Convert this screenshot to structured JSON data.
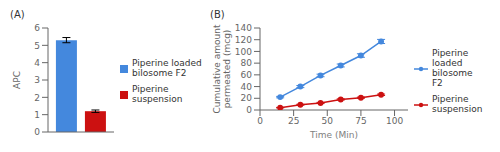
{
  "chart_data": [
    {
      "type": "bar",
      "title": "(A)",
      "ylabel": "APC",
      "categories": [
        null
      ],
      "series": [
        {
          "name": "Piperine loaded\nbilosome F2",
          "color": "#4488DD",
          "values": [
            5.3
          ],
          "errors": [
            0.15
          ]
        },
        {
          "name": "Piperine\nsuspension",
          "color": "#CC1111",
          "values": [
            1.2
          ],
          "errors": [
            0.07
          ]
        }
      ],
      "ylim": [
        0,
        6
      ],
      "yticks": [
        0,
        1,
        2,
        3,
        4,
        5,
        6
      ],
      "tick_labels": "y",
      "grid": false,
      "legend": "right"
    },
    {
      "type": "line",
      "title": "(B)",
      "xlabel": "Time (Min)",
      "ylabel": "Cumulative amount\npermeated (mcg)",
      "x": [
        15,
        30,
        45,
        60,
        75,
        90
      ],
      "series": [
        {
          "name": "Piperine\nloaded\nbilosome F2",
          "color": "#4488DD",
          "values": [
            22,
            40,
            59,
            76,
            93,
            117
          ],
          "errors": [
            1.2,
            1.8,
            2.2,
            2.5,
            3.0,
            3.5
          ],
          "marker": "circle"
        },
        {
          "name": "Piperine\nsuspension",
          "color": "#CC1111",
          "values": [
            4,
            9,
            12,
            18,
            21,
            26
          ],
          "errors": [
            0.5,
            0.8,
            1.0,
            1.0,
            1.0,
            1.2
          ],
          "marker": "circle"
        }
      ],
      "xlim": [
        0,
        110
      ],
      "xticks": [
        0,
        25,
        50,
        75,
        100
      ],
      "ylim": [
        0,
        140
      ],
      "yticks": [
        0,
        20,
        40,
        60,
        80,
        100,
        120,
        140
      ],
      "grid": false,
      "legend": "right"
    }
  ]
}
